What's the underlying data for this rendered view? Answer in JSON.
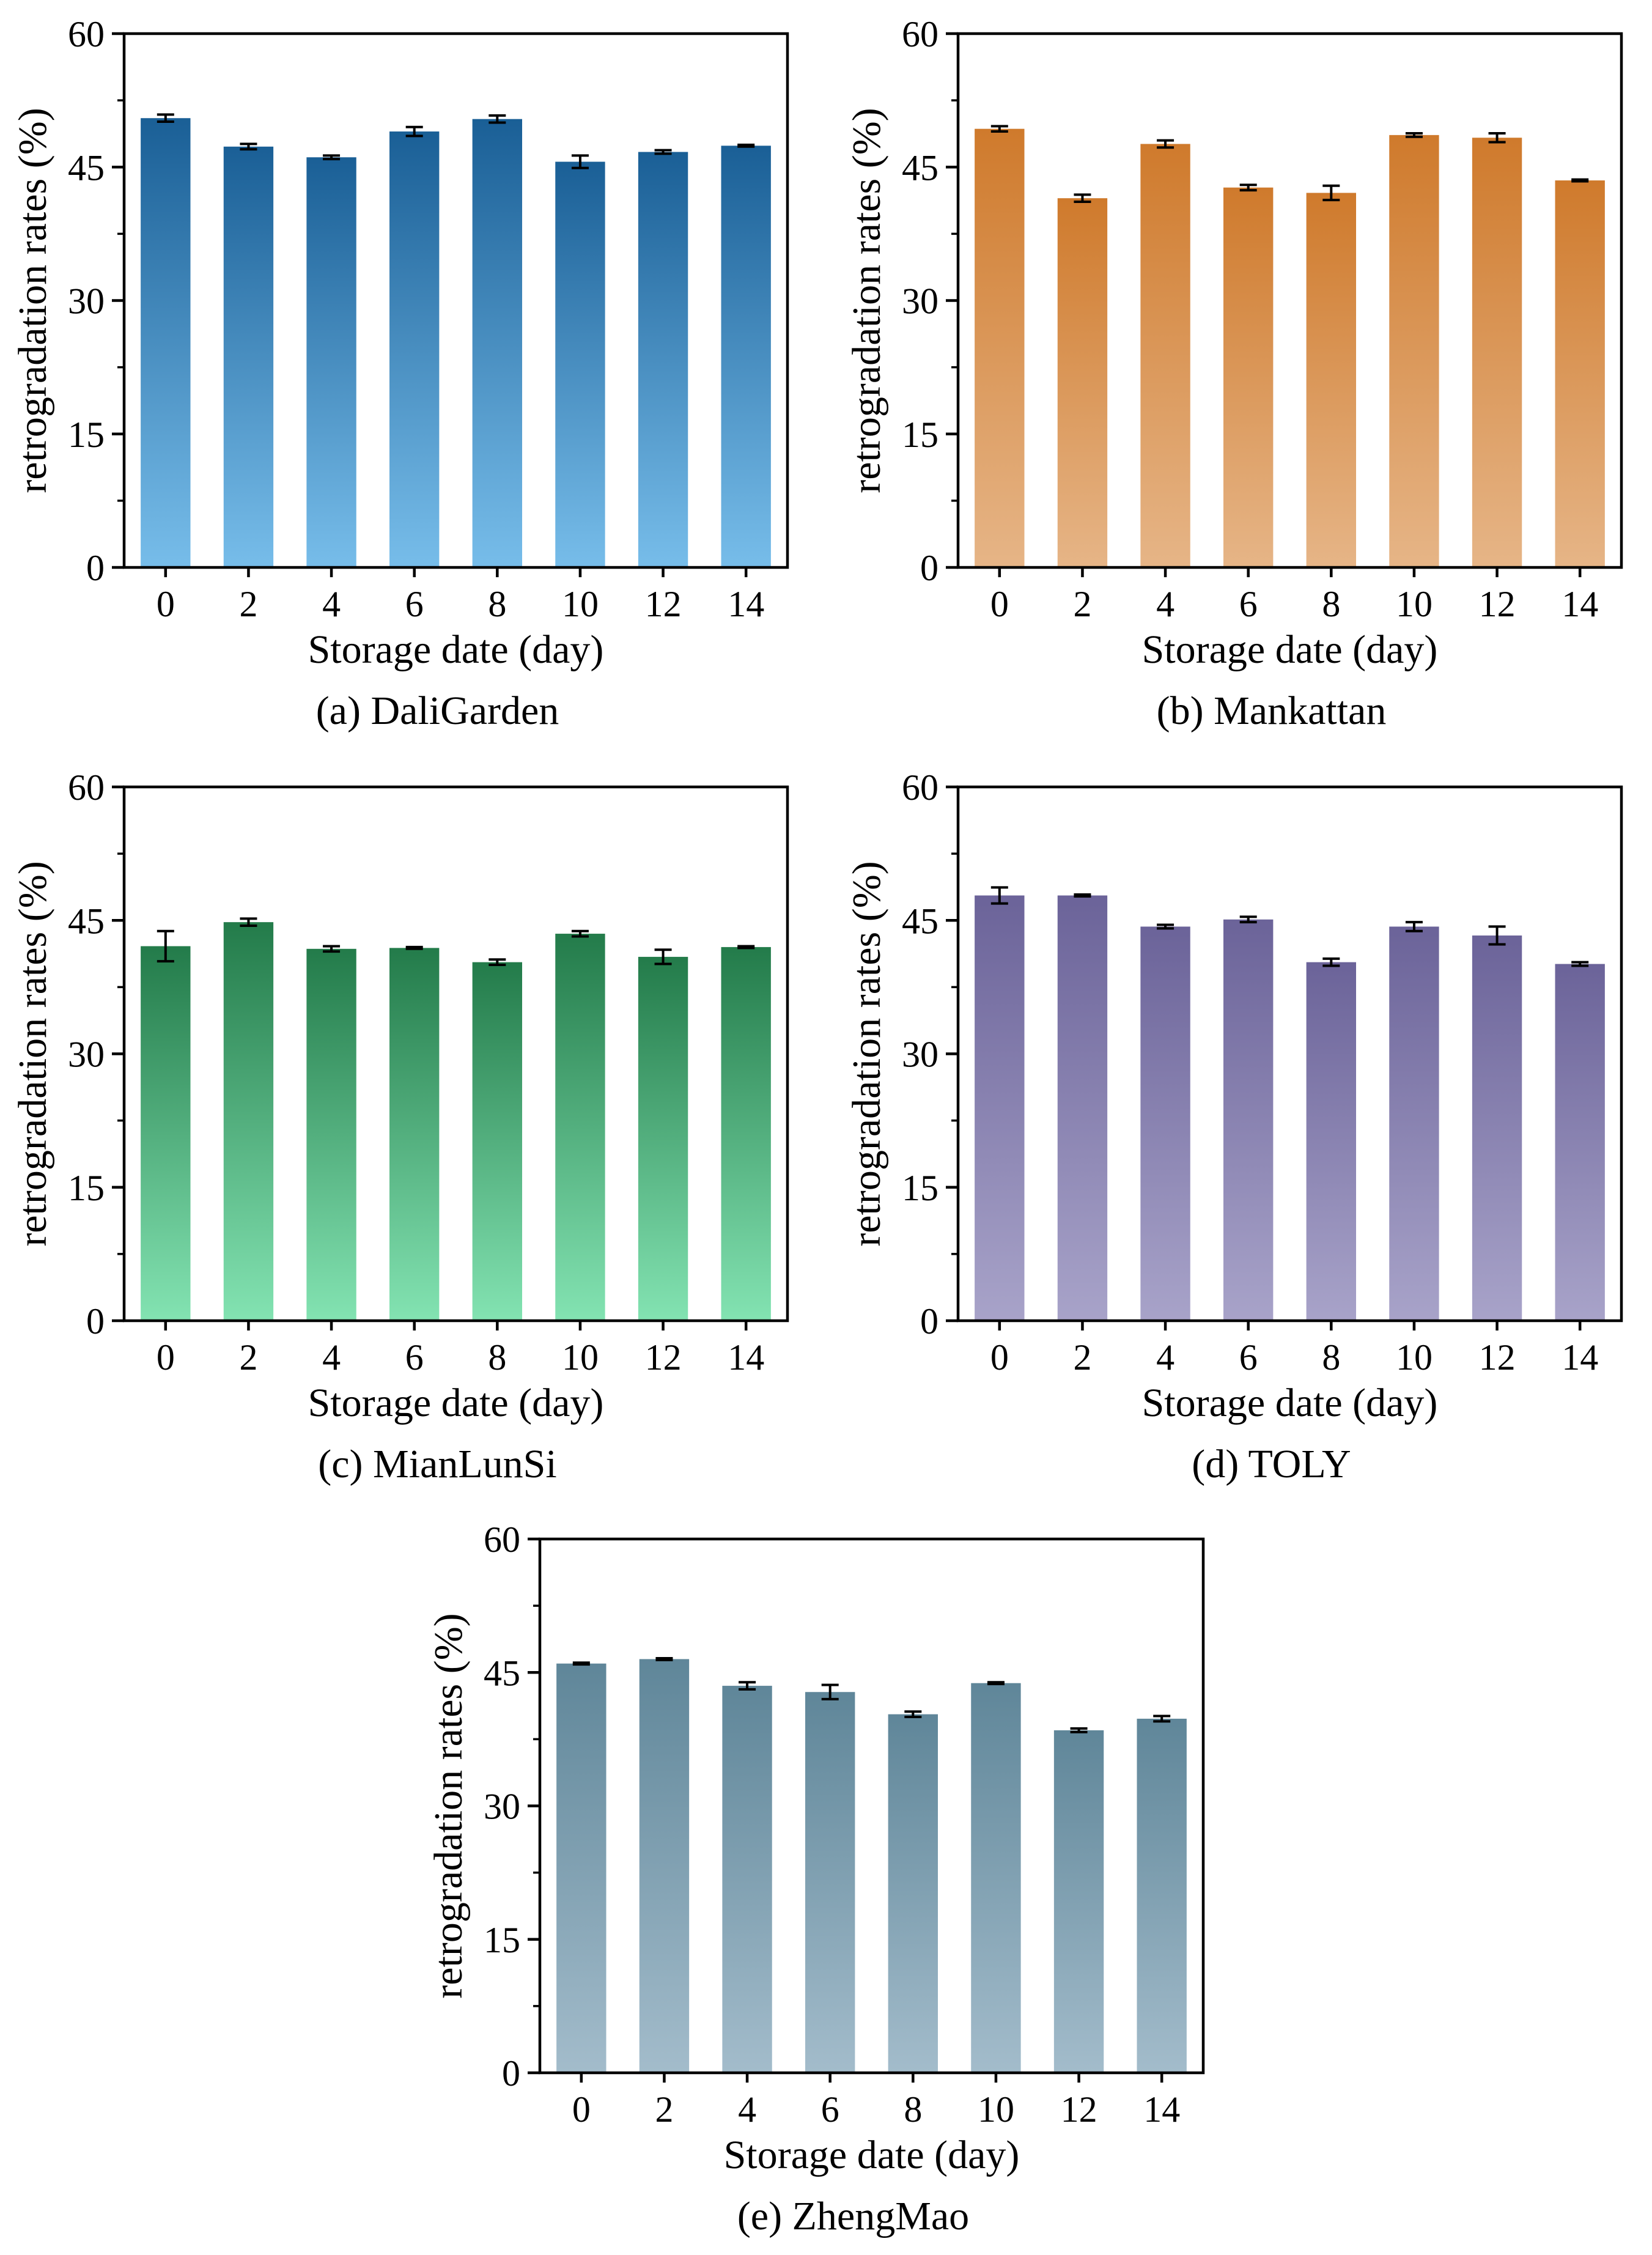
{
  "chart_data": [
    {
      "type": "bar",
      "caption": "(a) DaliGarden",
      "xlabel": "Storage date (day)",
      "ylabel": "retrogradation rates (%)",
      "ylim": [
        0,
        60
      ],
      "yticks": [
        "0",
        "15",
        "30",
        "45",
        "60"
      ],
      "categories": [
        "0",
        "2",
        "4",
        "6",
        "8",
        "10",
        "12",
        "14"
      ],
      "values": [
        50.5,
        47.3,
        46.1,
        49.0,
        50.4,
        45.6,
        46.7,
        47.4
      ],
      "errors": [
        0.4,
        0.3,
        0.2,
        0.5,
        0.4,
        0.7,
        0.2,
        0.1
      ],
      "color_top": "#1a5f96",
      "color_bottom": "#77bdea"
    },
    {
      "type": "bar",
      "caption": "(b) Mankattan",
      "xlabel": "Storage date (day)",
      "ylabel": "retrogradation rates (%)",
      "ylim": [
        0,
        60
      ],
      "yticks": [
        "0",
        "15",
        "30",
        "45",
        "60"
      ],
      "categories": [
        "0",
        "2",
        "4",
        "6",
        "8",
        "10",
        "12",
        "14"
      ],
      "values": [
        49.3,
        41.5,
        47.6,
        42.7,
        42.1,
        48.6,
        48.3,
        43.5
      ],
      "errors": [
        0.3,
        0.4,
        0.4,
        0.3,
        0.8,
        0.2,
        0.5,
        0.1
      ],
      "color_top": "#cf7a2c",
      "color_bottom": "#e6b587"
    },
    {
      "type": "bar",
      "caption": "(c) MianLunSi",
      "xlabel": "Storage date (day)",
      "ylabel": "retrogradation rates (%)",
      "ylim": [
        0,
        60
      ],
      "yticks": [
        "0",
        "15",
        "30",
        "45",
        "60"
      ],
      "categories": [
        "0",
        "2",
        "4",
        "6",
        "8",
        "10",
        "12",
        "14"
      ],
      "values": [
        42.1,
        44.8,
        41.8,
        41.9,
        40.3,
        43.5,
        40.9,
        42.0
      ],
      "errors": [
        1.7,
        0.4,
        0.3,
        0.1,
        0.3,
        0.3,
        0.8,
        0.1
      ],
      "color_top": "#237b4a",
      "color_bottom": "#83e3b2"
    },
    {
      "type": "bar",
      "caption": "(d) TOLY",
      "xlabel": "Storage date (day)",
      "ylabel": "retrogradation rates (%)",
      "ylim": [
        0,
        60
      ],
      "yticks": [
        "0",
        "15",
        "30",
        "45",
        "60"
      ],
      "categories": [
        "0",
        "2",
        "4",
        "6",
        "8",
        "10",
        "12",
        "14"
      ],
      "values": [
        47.8,
        47.8,
        44.3,
        45.1,
        40.3,
        44.3,
        43.3,
        40.1
      ],
      "errors": [
        0.9,
        0.1,
        0.2,
        0.3,
        0.4,
        0.5,
        1.0,
        0.2
      ],
      "color_top": "#6b6399",
      "color_bottom": "#a8a3c9"
    },
    {
      "type": "bar",
      "caption": "(e) ZhengMao",
      "xlabel": "Storage date (day)",
      "ylabel": "retrogradation rates (%)",
      "ylim": [
        0,
        60
      ],
      "yticks": [
        "0",
        "15",
        "30",
        "45",
        "60"
      ],
      "categories": [
        "0",
        "2",
        "4",
        "6",
        "8",
        "10",
        "12",
        "14"
      ],
      "values": [
        46.0,
        46.5,
        43.5,
        42.8,
        40.3,
        43.8,
        38.5,
        39.8
      ],
      "errors": [
        0.1,
        0.1,
        0.4,
        0.8,
        0.3,
        0.1,
        0.2,
        0.3
      ],
      "color_top": "#5f8699",
      "color_bottom": "#a3bccb"
    }
  ]
}
